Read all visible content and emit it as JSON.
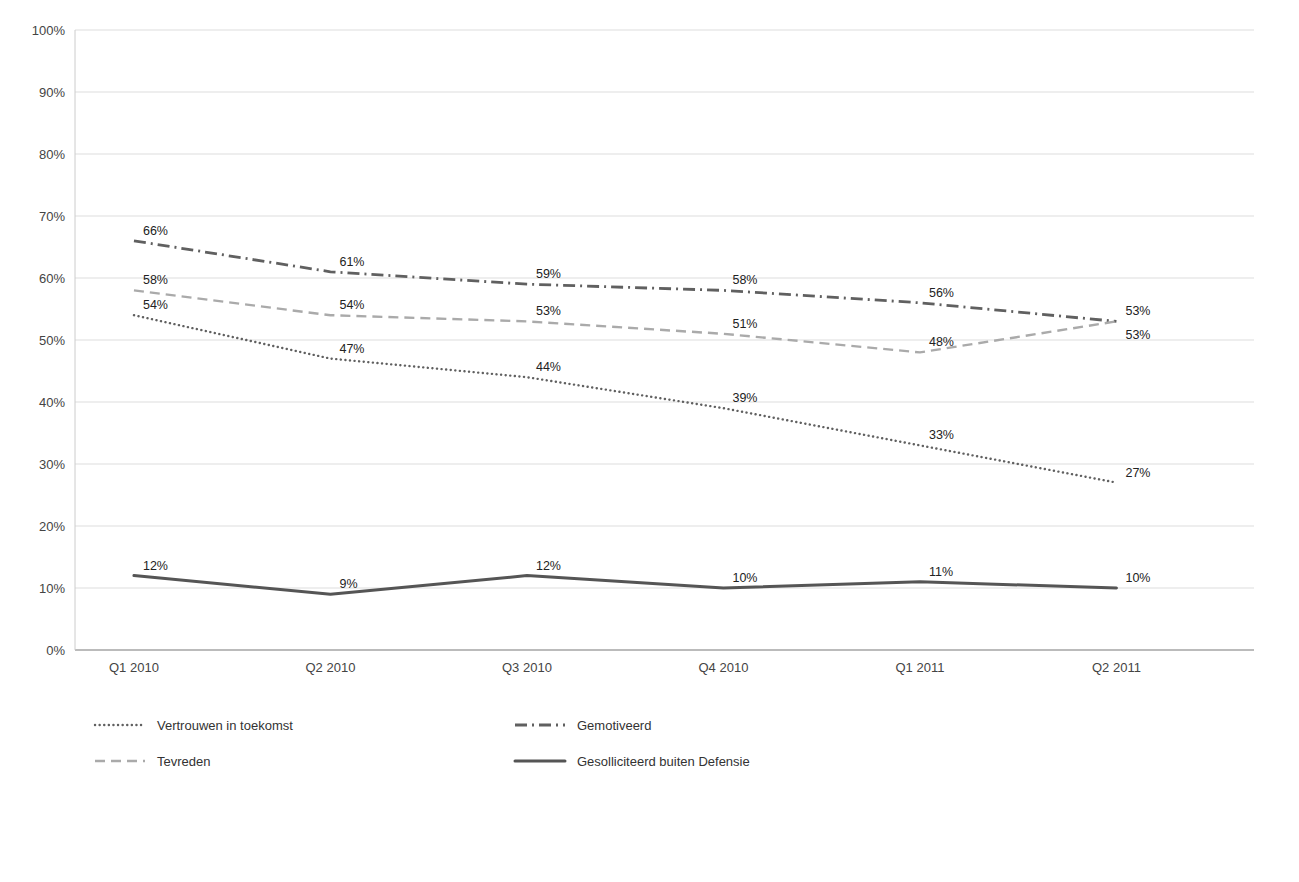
{
  "chart_data": {
    "type": "line",
    "categories": [
      "Q1 2010",
      "Q2 2010",
      "Q3 2010",
      "Q4 2010",
      "Q1 2011",
      "Q2 2011"
    ],
    "series": [
      {
        "name": "Vertrouwen in toekomst",
        "color": "#606060",
        "line_style": "dotted",
        "values": [
          54,
          47,
          44,
          39,
          33,
          27
        ],
        "value_labels": [
          "54%",
          "47%",
          "44%",
          "39%",
          "33%",
          "27%"
        ]
      },
      {
        "name": "Gemotiveerd",
        "color": "#606060",
        "line_style": "dashdot",
        "values": [
          66,
          61,
          59,
          58,
          56,
          53
        ],
        "value_labels": [
          "66%",
          "61%",
          "59%",
          "58%",
          "56%",
          "53%"
        ]
      },
      {
        "name": "Tevreden",
        "color": "#aaaaaa",
        "line_style": "dashed",
        "values": [
          58,
          54,
          53,
          51,
          48,
          53
        ],
        "value_labels": [
          "58%",
          "54%",
          "53%",
          "51%",
          "48%",
          "53%"
        ]
      },
      {
        "name": "Gesolliciteerd buiten Defensie",
        "color": "#555555",
        "line_style": "solid",
        "values": [
          12,
          9,
          12,
          10,
          11,
          10
        ],
        "value_labels": [
          "12%",
          "9%",
          "12%",
          "10%",
          "11%",
          "10%"
        ]
      }
    ],
    "ylim": [
      0,
      100
    ],
    "yticks": [
      {
        "value": 0,
        "label": "0%"
      },
      {
        "value": 10,
        "label": "10%"
      },
      {
        "value": 20,
        "label": "20%"
      },
      {
        "value": 30,
        "label": "30%"
      },
      {
        "value": 40,
        "label": "40%"
      },
      {
        "value": 50,
        "label": "50%"
      },
      {
        "value": 60,
        "label": "60%"
      },
      {
        "value": 70,
        "label": "70%"
      },
      {
        "value": 80,
        "label": "80%"
      },
      {
        "value": 90,
        "label": "90%"
      },
      {
        "value": 100,
        "label": "100%"
      }
    ],
    "grid": true,
    "data_labels": true,
    "legend": "bottom"
  }
}
